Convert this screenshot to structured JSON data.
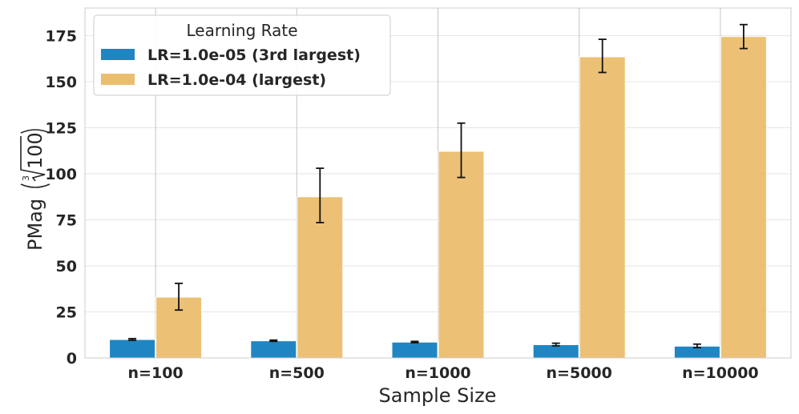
{
  "chart_data": {
    "type": "bar",
    "title": "",
    "xlabel": "Sample Size",
    "ylabel": "PMag",
    "ylabel_superscript": "3",
    "ylabel_radicand": "100",
    "ylim": [
      0,
      190
    ],
    "yticks": [
      0,
      25,
      50,
      75,
      100,
      125,
      150,
      175
    ],
    "categories": [
      "n=100",
      "n=500",
      "n=1000",
      "n=5000",
      "n=10000"
    ],
    "legend_title": "Learning Rate",
    "legend_position": "top-left",
    "grid": true,
    "series": [
      {
        "name": "LR=1.0e-05 (3rd largest)",
        "color": "#1f86c3",
        "values": [
          10.0,
          9.3,
          8.6,
          7.2,
          6.4
        ],
        "err_low": [
          9.6,
          9.0,
          8.3,
          6.6,
          5.6
        ],
        "err_high": [
          10.5,
          9.7,
          9.0,
          8.0,
          7.5
        ]
      },
      {
        "name": "LR=1.0e-04 (largest)",
        "color": "#ebbe6e",
        "values": [
          33.0,
          87.5,
          112.2,
          163.5,
          174.5
        ],
        "err_low": [
          26.0,
          73.5,
          98.0,
          155.0,
          168.0
        ],
        "err_high": [
          40.5,
          103.0,
          127.5,
          173.0,
          181.0
        ]
      }
    ]
  }
}
